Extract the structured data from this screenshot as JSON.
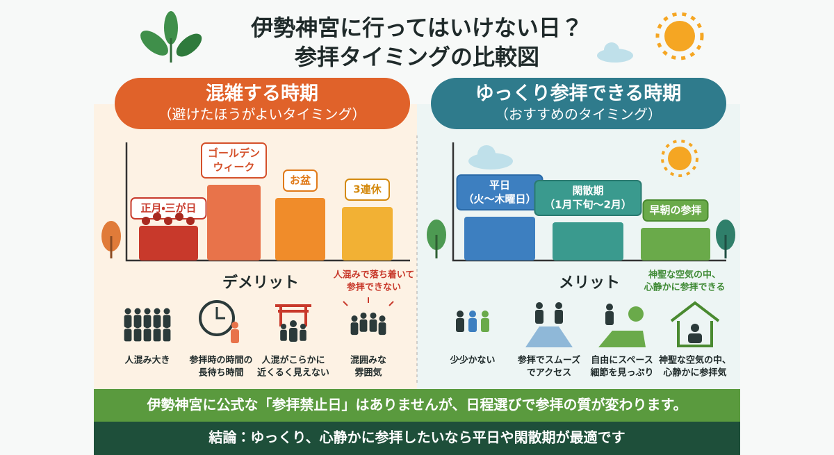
{
  "title": [
    "伊勢神宮に行ってはいけない日？",
    "参拝タイミングの比較図"
  ],
  "left": {
    "heading": "混雑する時期",
    "subheading": "（避けたほうがよいタイミング）",
    "bars": [
      [
        "正月・三が日"
      ],
      [
        "ゴールデン",
        "ウィーク"
      ],
      [
        "お盆"
      ],
      [
        "3連休"
      ]
    ],
    "section": "デメリット",
    "note": [
      "人混みで落ち着いて",
      "参拝できない"
    ],
    "items": [
      [
        "人混み大き"
      ],
      [
        "参拝時の時間の",
        "長待ち時間"
      ],
      [
        "人混がこらかに",
        "近くるく見えない"
      ],
      [
        "混囲みな",
        "雰囲気"
      ]
    ]
  },
  "right": {
    "heading": "ゆっくり参拝できる時期",
    "subheading": "（おすすめのタイミング）",
    "bars": [
      [
        "平日",
        "（火〜木曜日）"
      ],
      [
        "閑散期",
        "（1月下旬〜2月）"
      ],
      [
        "早朝の参拝"
      ]
    ],
    "section": "メリット",
    "note": [
      "神聖な空気の中、",
      "心静かに参拝できる"
    ],
    "items": [
      [
        "少少かない"
      ],
      [
        "参拝でスムーズ",
        "でアクセス"
      ],
      [
        "自由にスペース",
        "細節を見っぷり"
      ],
      [
        "神聖な空気の中、",
        "心静かに参拝気"
      ]
    ]
  },
  "footer": {
    "notice": "伊勢神宮に公式な「参拝禁止日」はありませんが、日程選びで参拝の質が変わります。",
    "conclusion": "結論：ゆっくり、心静かに参拝したいなら平日や閑散期が最適です"
  }
}
